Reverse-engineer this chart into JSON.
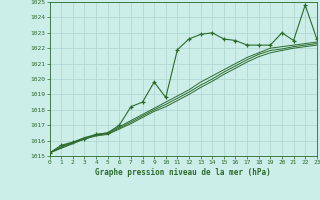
{
  "title": "Graphe pression niveau de la mer (hPa)",
  "bg_color": "#cceee8",
  "grid_color": "#aad4ce",
  "line_color": "#2d6a2d",
  "text_color": "#2d6a2d",
  "ylim": [
    1015,
    1025
  ],
  "xlim": [
    0,
    23
  ],
  "yticks": [
    1015,
    1016,
    1017,
    1018,
    1019,
    1020,
    1021,
    1022,
    1023,
    1024,
    1025
  ],
  "xticks": [
    0,
    1,
    2,
    3,
    4,
    5,
    6,
    7,
    8,
    9,
    10,
    11,
    12,
    13,
    14,
    15,
    16,
    17,
    18,
    19,
    20,
    21,
    22,
    23
  ],
  "series1_x": [
    0,
    1,
    2,
    3,
    4,
    5,
    6,
    7,
    8,
    9,
    10,
    11,
    12,
    13,
    14,
    15,
    16,
    17,
    18,
    19,
    20,
    21,
    22,
    23
  ],
  "series1_y": [
    1015.2,
    1015.7,
    1015.9,
    1016.1,
    1016.4,
    1016.5,
    1017.0,
    1018.2,
    1018.5,
    1019.8,
    1018.8,
    1021.9,
    1022.6,
    1022.9,
    1023.0,
    1022.6,
    1022.5,
    1022.2,
    1022.2,
    1022.2,
    1023.0,
    1022.5,
    1024.8,
    1022.6
  ],
  "series2_x": [
    0,
    1,
    2,
    3,
    4,
    5,
    6,
    7,
    8,
    9,
    10,
    11,
    12,
    13,
    14,
    15,
    16,
    17,
    18,
    19,
    20,
    21,
    22,
    23
  ],
  "series2_y": [
    1015.2,
    1015.6,
    1015.9,
    1016.2,
    1016.4,
    1016.5,
    1016.9,
    1017.3,
    1017.7,
    1018.1,
    1018.5,
    1018.9,
    1019.3,
    1019.8,
    1020.2,
    1020.6,
    1021.0,
    1021.4,
    1021.7,
    1022.0,
    1022.1,
    1022.2,
    1022.3,
    1022.4
  ],
  "series3_x": [
    0,
    1,
    2,
    3,
    4,
    5,
    6,
    7,
    8,
    9,
    10,
    11,
    12,
    13,
    14,
    15,
    16,
    17,
    18,
    19,
    20,
    21,
    22,
    23
  ],
  "series3_y": [
    1015.2,
    1015.55,
    1015.85,
    1016.15,
    1016.35,
    1016.45,
    1016.82,
    1017.2,
    1017.6,
    1018.0,
    1018.35,
    1018.75,
    1019.15,
    1019.6,
    1020.0,
    1020.45,
    1020.85,
    1021.25,
    1021.6,
    1021.85,
    1021.95,
    1022.1,
    1022.2,
    1022.3
  ],
  "series4_x": [
    0,
    1,
    2,
    3,
    4,
    5,
    6,
    7,
    8,
    9,
    10,
    11,
    12,
    13,
    14,
    15,
    16,
    17,
    18,
    19,
    20,
    21,
    22,
    23
  ],
  "series4_y": [
    1015.2,
    1015.5,
    1015.8,
    1016.1,
    1016.3,
    1016.4,
    1016.75,
    1017.1,
    1017.5,
    1017.9,
    1018.2,
    1018.6,
    1019.0,
    1019.45,
    1019.85,
    1020.3,
    1020.7,
    1021.1,
    1021.45,
    1021.7,
    1021.85,
    1022.0,
    1022.1,
    1022.2
  ]
}
